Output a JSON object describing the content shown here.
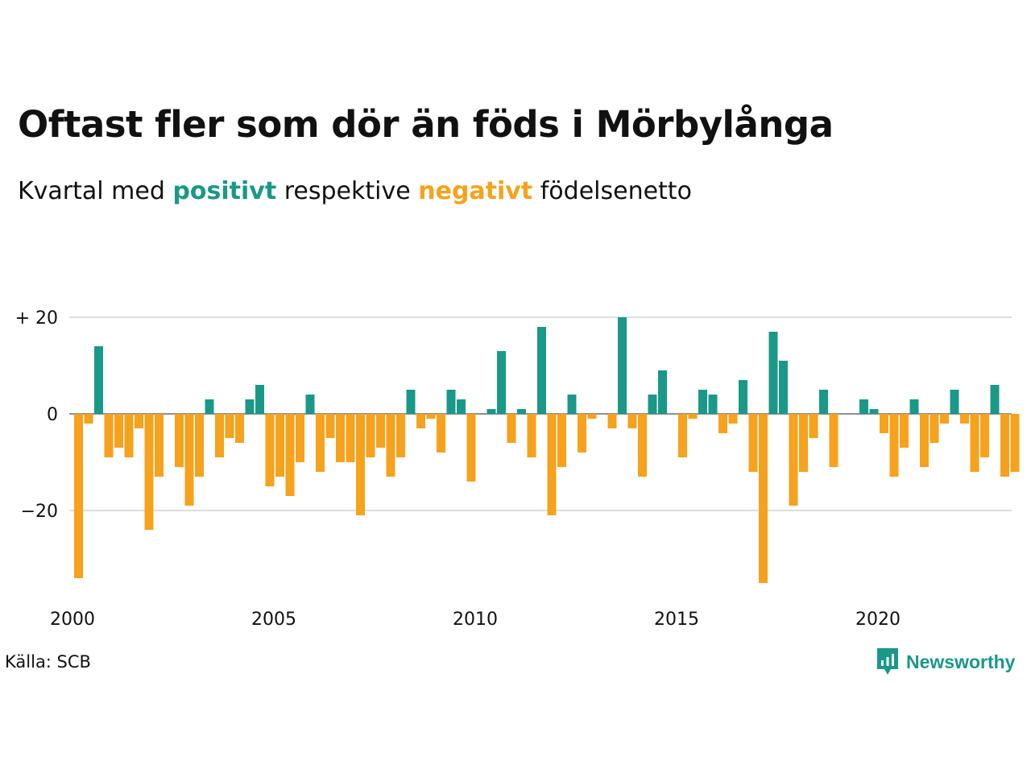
{
  "title": "Oftast fler som dör än föds i Mörbylånga",
  "subtitle": {
    "prefix": "Kvartal med",
    "positive_word": "positivt",
    "middle": "respektive",
    "negative_word": "negativt",
    "suffix": "födelsenetto"
  },
  "source": "Källa: SCB",
  "brand": "Newsworthy",
  "colors": {
    "positive": "#1a9888",
    "negative": "#f6a21c",
    "grid": "#dddddd",
    "text": "#111111"
  },
  "chart_data": {
    "type": "bar",
    "x_start": "2000",
    "x_interval": "quarter",
    "x_ticks": [
      "2000",
      "2005",
      "2010",
      "2015",
      "2020"
    ],
    "y_ticks": [
      {
        "value": 20,
        "label": "+ 20"
      },
      {
        "value": 0,
        "label": "0"
      },
      {
        "value": -20,
        "label": "−20"
      }
    ],
    "ylim": [
      -38,
      22
    ],
    "grid": true,
    "values": [
      -34,
      -2,
      14,
      -9,
      -7,
      -9,
      -3,
      -24,
      -13,
      0,
      -11,
      -19,
      -13,
      3,
      -9,
      -5,
      -6,
      3,
      6,
      -15,
      -13,
      -17,
      -10,
      4,
      -12,
      -5,
      -10,
      -10,
      -21,
      -9,
      -7,
      -13,
      -9,
      5,
      -3,
      -1,
      -8,
      5,
      3,
      -14,
      0,
      1,
      13,
      -6,
      1,
      -9,
      18,
      -21,
      -11,
      4,
      -8,
      -1,
      0,
      -3,
      20,
      -3,
      -13,
      4,
      9,
      0,
      -9,
      -1,
      5,
      4,
      -4,
      -2,
      7,
      -12,
      -35,
      17,
      11,
      -19,
      -12,
      -5,
      5,
      -11,
      0,
      0,
      3,
      1,
      -4,
      -13,
      -7,
      3,
      -11,
      -6,
      -2,
      5,
      -2,
      -12,
      -9,
      6,
      -13,
      -12
    ]
  }
}
